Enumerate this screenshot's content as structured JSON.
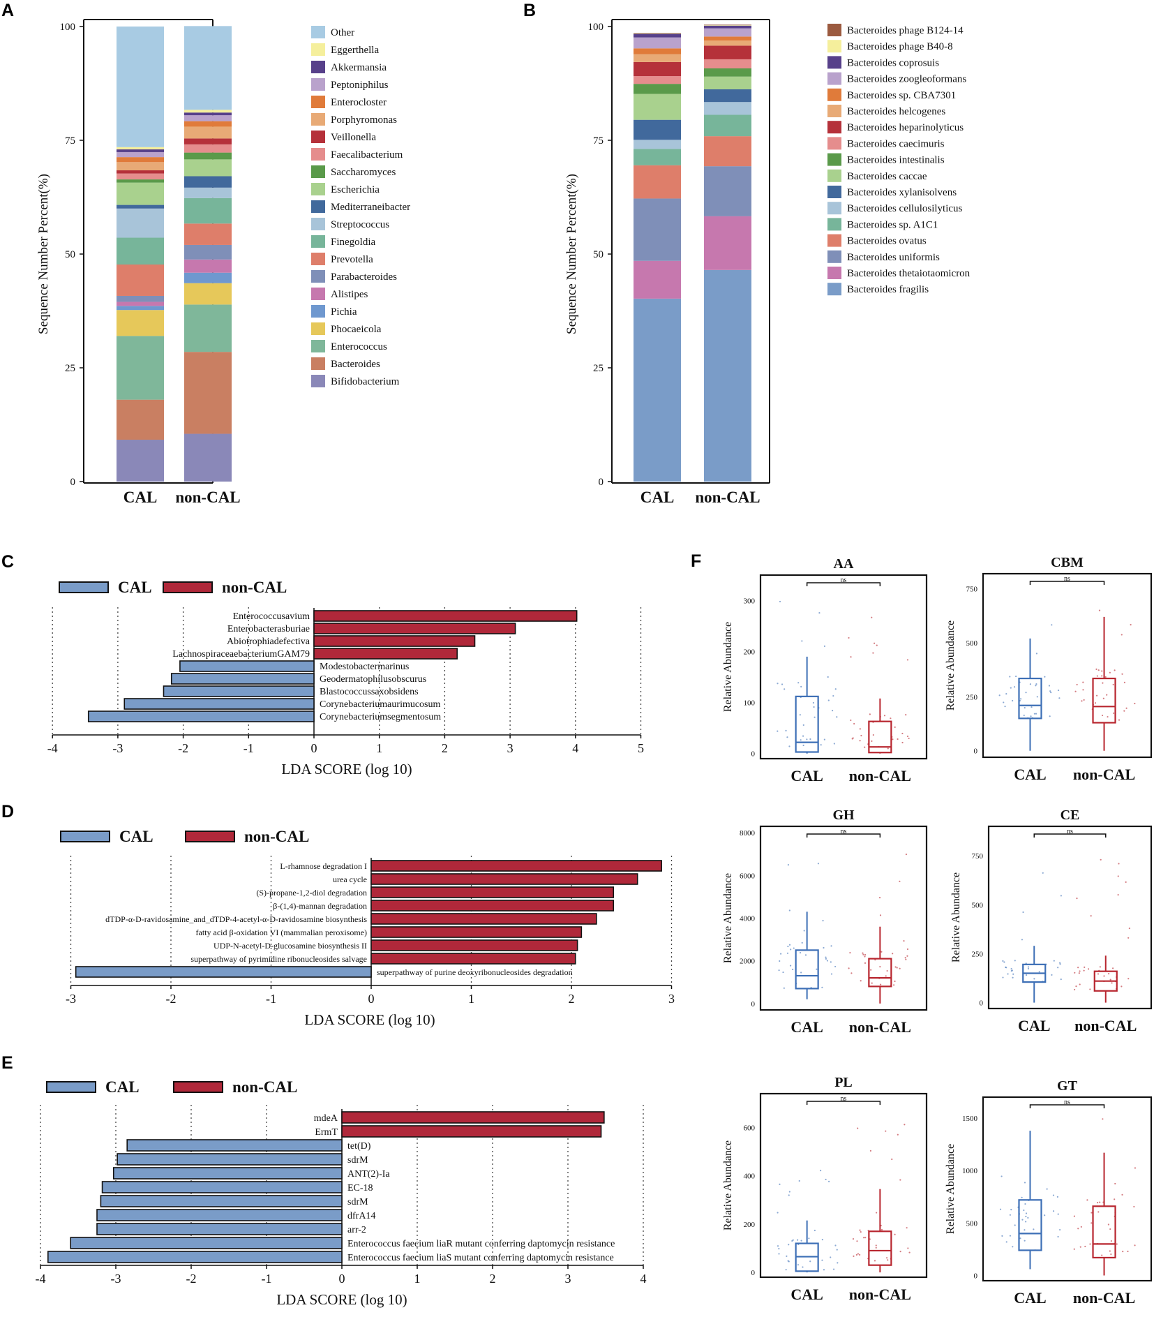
{
  "figure": {
    "colors": {
      "cal": "#7a9cc8",
      "noncal": "#b0283a",
      "cal_box": "#3d6fb6",
      "noncal_box": "#b8262f",
      "frame": "#111111"
    }
  },
  "chart_data": [
    {
      "id": "A",
      "type": "bar",
      "stacked": true,
      "panel_label": "A",
      "ylabel": "Sequence Number Percent(%)",
      "ylim": [
        0,
        100
      ],
      "yticks": [
        0,
        25,
        50,
        75,
        100
      ],
      "categories": [
        "CAL",
        "non-CAL"
      ],
      "series": [
        {
          "name": "Bifidobacterium",
          "color": "#8a88b8",
          "values": [
            9.2,
            10.5
          ]
        },
        {
          "name": "Bacteroides",
          "color": "#c97f62",
          "values": [
            8.8,
            18.0
          ]
        },
        {
          "name": "Enterococcus",
          "color": "#7fb79a",
          "values": [
            14.0,
            10.4
          ]
        },
        {
          "name": "Phocaeicola",
          "color": "#e6c85a",
          "values": [
            5.7,
            4.7
          ]
        },
        {
          "name": "Pichia",
          "color": "#6f98cf",
          "values": [
            0.9,
            2.3
          ]
        },
        {
          "name": "Alistipes",
          "color": "#c678ae",
          "values": [
            0.9,
            2.9
          ]
        },
        {
          "name": "Parabacteroides",
          "color": "#7f8fb8",
          "values": [
            1.3,
            3.2
          ]
        },
        {
          "name": "Prevotella",
          "color": "#de7e6a",
          "values": [
            6.9,
            4.7
          ]
        },
        {
          "name": "Finegoldia",
          "color": "#77b59a",
          "values": [
            5.9,
            5.6
          ]
        },
        {
          "name": "Streptococcus",
          "color": "#a8c4d9",
          "values": [
            6.4,
            2.3
          ]
        },
        {
          "name": "Mediterraneibacter",
          "color": "#41699c",
          "values": [
            0.8,
            2.5
          ]
        },
        {
          "name": "Escherichia",
          "color": "#a9d18e",
          "values": [
            4.9,
            3.7
          ]
        },
        {
          "name": "Saccharomyces",
          "color": "#5a9a4a",
          "values": [
            0.7,
            1.5
          ]
        },
        {
          "name": "Faecalibacterium",
          "color": "#e58d8d",
          "values": [
            1.3,
            1.8
          ]
        },
        {
          "name": "Veillonella",
          "color": "#b5313a",
          "values": [
            0.7,
            1.3
          ]
        },
        {
          "name": "Porphyromonas",
          "color": "#e8aa76",
          "values": [
            1.8,
            2.6
          ]
        },
        {
          "name": "Enterocloster",
          "color": "#e07b3a",
          "values": [
            1.1,
            1.2
          ]
        },
        {
          "name": "Peptoniphilus",
          "color": "#b9a2cc",
          "values": [
            1.1,
            1.3
          ]
        },
        {
          "name": "Akkermansia",
          "color": "#57408a",
          "values": [
            0.6,
            0.6
          ]
        },
        {
          "name": "Eggerthella",
          "color": "#f5ef9c",
          "values": [
            0.5,
            0.6
          ]
        },
        {
          "name": "Other",
          "color": "#a8cbe3",
          "values": [
            26.5,
            18.4
          ]
        }
      ]
    },
    {
      "id": "B",
      "type": "bar",
      "stacked": true,
      "panel_label": "B",
      "ylabel": "Sequence Number Percent(%)",
      "ylim": [
        0,
        100
      ],
      "yticks": [
        0,
        25,
        50,
        75,
        100
      ],
      "categories": [
        "CAL",
        "non-CAL"
      ],
      "series": [
        {
          "name": "Bacteroides fragilis",
          "color": "#7a9cc8",
          "values": [
            40.2,
            46.5
          ]
        },
        {
          "name": "Bacteroides thetaiotaomicron",
          "color": "#c678ae",
          "values": [
            8.3,
            11.8
          ]
        },
        {
          "name": "Bacteroides uniformis",
          "color": "#7f8fb8",
          "values": [
            13.7,
            11.0
          ]
        },
        {
          "name": "Bacteroides ovatus",
          "color": "#de7e6a",
          "values": [
            7.3,
            6.6
          ]
        },
        {
          "name": "Bacteroides sp. A1C1",
          "color": "#77b59a",
          "values": [
            3.6,
            4.7
          ]
        },
        {
          "name": "Bacteroides cellulosilyticus",
          "color": "#a8c4d9",
          "values": [
            2.0,
            2.8
          ]
        },
        {
          "name": "Bacteroides xylanisolvens",
          "color": "#41699c",
          "values": [
            4.4,
            2.8
          ]
        },
        {
          "name": "Bacteroides caccae",
          "color": "#a9d18e",
          "values": [
            5.7,
            2.8
          ]
        },
        {
          "name": "Bacteroides intestinalis",
          "color": "#5a9a4a",
          "values": [
            2.2,
            1.8
          ]
        },
        {
          "name": "Bacteroides caecimuris",
          "color": "#e58d8d",
          "values": [
            1.7,
            2.0
          ]
        },
        {
          "name": "Bacteroides heparinolyticus",
          "color": "#b5313a",
          "values": [
            3.1,
            3.0
          ]
        },
        {
          "name": "Bacteroides helcogenes",
          "color": "#e8aa76",
          "values": [
            1.7,
            1.1
          ]
        },
        {
          "name": "Bacteroides sp. CBA7301",
          "color": "#e07b3a",
          "values": [
            1.3,
            0.9
          ]
        },
        {
          "name": "Bacteroides zoogleoformans",
          "color": "#b9a2cc",
          "values": [
            2.4,
            1.8
          ]
        },
        {
          "name": "Bacteroides coprosuis",
          "color": "#57408a",
          "values": [
            0.8,
            0.6
          ]
        },
        {
          "name": "Bacteroides phage B40-8",
          "color": "#f5ef9c",
          "values": [
            0.1,
            0.1
          ]
        },
        {
          "name": "Bacteroides phage B124-14",
          "color": "#9b5a3f",
          "values": [
            0.1,
            0.1
          ]
        }
      ]
    },
    {
      "id": "C",
      "type": "bar",
      "orientation": "horizontal",
      "panel_label": "C",
      "xlabel": "LDA SCORE (log 10)",
      "xlim": [
        -4,
        5
      ],
      "xticks": [
        -4,
        -3,
        -2,
        -1,
        0,
        1,
        2,
        3,
        4,
        5
      ],
      "legend": [
        "CAL",
        "non-CAL"
      ],
      "bars": [
        {
          "label": "Enterococcusavium",
          "value": 4.02,
          "group": "non-CAL"
        },
        {
          "label": "Enterobacterasburiae",
          "value": 3.08,
          "group": "non-CAL"
        },
        {
          "label": "Abiotrophiadefectiva",
          "value": 2.46,
          "group": "non-CAL"
        },
        {
          "label": "LachnospiraceaebacteriumGAM79",
          "value": 2.19,
          "group": "non-CAL"
        },
        {
          "label": "Modestobactermarinus",
          "value": -2.05,
          "group": "CAL"
        },
        {
          "label": "Geodermatophilusobscurus",
          "value": -2.18,
          "group": "CAL"
        },
        {
          "label": "Blastococcussaxobsidens",
          "value": -2.3,
          "group": "CAL"
        },
        {
          "label": "Corynebacteriumaurimucosum",
          "value": -2.9,
          "group": "CAL"
        },
        {
          "label": "Corynebacteriumsegmentosum",
          "value": -3.45,
          "group": "CAL"
        }
      ]
    },
    {
      "id": "D",
      "type": "bar",
      "orientation": "horizontal",
      "panel_label": "D",
      "xlabel": "LDA SCORE (log 10)",
      "xlim": [
        -3,
        3
      ],
      "xticks": [
        -3,
        -2,
        -1,
        0,
        1,
        2,
        3
      ],
      "legend": [
        "CAL",
        "non-CAL"
      ],
      "bars": [
        {
          "label": "L-rhamnose degradation I",
          "value": 2.9,
          "group": "non-CAL"
        },
        {
          "label": "urea cycle",
          "value": 2.66,
          "group": "non-CAL"
        },
        {
          "label": "(S)-propane-1,2-diol degradation",
          "value": 2.42,
          "group": "non-CAL"
        },
        {
          "label": "&beta;-(1,4)-mannan degradation",
          "value": 2.42,
          "group": "non-CAL"
        },
        {
          "label": "dTDP-&alpha;-D-ravidosamine_and_dTDP-4-acetyl-&alpha;-D-ravidosamine biosynthesis",
          "value": 2.25,
          "group": "non-CAL"
        },
        {
          "label": "fatty acid &beta;-oxidation VI (mammalian peroxisome)",
          "value": 2.1,
          "group": "non-CAL"
        },
        {
          "label": "UDP-N-acetyl-D-glucosamine biosynthesis II",
          "value": 2.06,
          "group": "non-CAL"
        },
        {
          "label": "superpathway of pyrimidine ribonucleosides salvage",
          "value": 2.04,
          "group": "non-CAL"
        },
        {
          "label": "superpathway of purine deoxyribonucleosides degradation",
          "value": -2.95,
          "group": "CAL"
        }
      ]
    },
    {
      "id": "E",
      "type": "bar",
      "orientation": "horizontal",
      "panel_label": "E",
      "xlabel": "LDA SCORE (log 10)",
      "xlim": [
        -4,
        4
      ],
      "xticks": [
        -4,
        -3,
        -2,
        -1,
        0,
        1,
        2,
        3,
        4
      ],
      "legend": [
        "CAL",
        "non-CAL"
      ],
      "bars": [
        {
          "label": "mdeA",
          "value": 3.48,
          "group": "non-CAL"
        },
        {
          "label": "ErmT",
          "value": 3.44,
          "group": "non-CAL"
        },
        {
          "label": "tet(D)",
          "value": -2.85,
          "group": "CAL"
        },
        {
          "label": "sdrM",
          "value": -2.98,
          "group": "CAL"
        },
        {
          "label": "ANT(2)-Ia",
          "value": -3.03,
          "group": "CAL"
        },
        {
          "label": "EC-18",
          "value": -3.18,
          "group": "CAL"
        },
        {
          "label": "sdrM",
          "value": -3.2,
          "group": "CAL"
        },
        {
          "label": "dfrA14",
          "value": -3.25,
          "group": "CAL"
        },
        {
          "label": "arr-2",
          "value": -3.25,
          "group": "CAL"
        },
        {
          "label": "Enterococcus faecium liaR mutant conferring daptomycin resistance",
          "value": -3.6,
          "group": "CAL"
        },
        {
          "label": "Enterococcus faecium liaS mutant conferring daptomycin resistance",
          "value": -3.9,
          "group": "CAL"
        }
      ]
    },
    {
      "id": "F",
      "type": "box",
      "panel_label": "F",
      "ylabel": "Relative Abundance",
      "categories": [
        "CAL",
        "non-CAL"
      ],
      "significance": "ns",
      "plots": [
        {
          "title": "AA",
          "ylim": [
            -10,
            350
          ],
          "yticks": [
            0,
            100,
            200,
            300
          ],
          "boxes": [
            {
              "min": 0,
              "q1": 3,
              "median": 22,
              "q3": 112,
              "max": 190
            },
            {
              "min": 0,
              "q1": 2,
              "median": 13,
              "q3": 63,
              "max": 108
            }
          ]
        },
        {
          "title": "CBM",
          "ylim": [
            -30,
            820
          ],
          "yticks": [
            0,
            250,
            500,
            750
          ],
          "boxes": [
            {
              "min": 0,
              "q1": 150,
              "median": 210,
              "q3": 335,
              "max": 520
            },
            {
              "min": 0,
              "q1": 130,
              "median": 205,
              "q3": 335,
              "max": 620
            }
          ]
        },
        {
          "title": "GH",
          "ylim": [
            -300,
            8300
          ],
          "yticks": [
            0,
            2000,
            4000,
            6000,
            8000
          ],
          "boxes": [
            {
              "min": 200,
              "q1": 700,
              "median": 1300,
              "q3": 2500,
              "max": 4300
            },
            {
              "min": 0,
              "q1": 800,
              "median": 1200,
              "q3": 2100,
              "max": 3600
            }
          ]
        },
        {
          "title": "CE",
          "ylim": [
            -30,
            900
          ],
          "yticks": [
            0,
            250,
            500,
            750
          ],
          "boxes": [
            {
              "min": 0,
              "q1": 105,
              "median": 150,
              "q3": 195,
              "max": 290
            },
            {
              "min": 0,
              "q1": 60,
              "median": 110,
              "q3": 160,
              "max": 240
            }
          ]
        },
        {
          "title": "PL",
          "ylim": [
            -20,
            740
          ],
          "yticks": [
            0,
            200,
            400,
            600
          ],
          "boxes": [
            {
              "min": 0,
              "q1": 5,
              "median": 65,
              "q3": 120,
              "max": 215
            },
            {
              "min": 0,
              "q1": 30,
              "median": 90,
              "q3": 170,
              "max": 345
            }
          ]
        },
        {
          "title": "GT",
          "ylim": [
            -50,
            1700
          ],
          "yticks": [
            0,
            500,
            1000,
            1500
          ],
          "boxes": [
            {
              "min": 60,
              "q1": 240,
              "median": 400,
              "q3": 720,
              "max": 1380
            },
            {
              "min": 0,
              "q1": 170,
              "median": 300,
              "q3": 660,
              "max": 1170
            }
          ]
        }
      ]
    }
  ]
}
